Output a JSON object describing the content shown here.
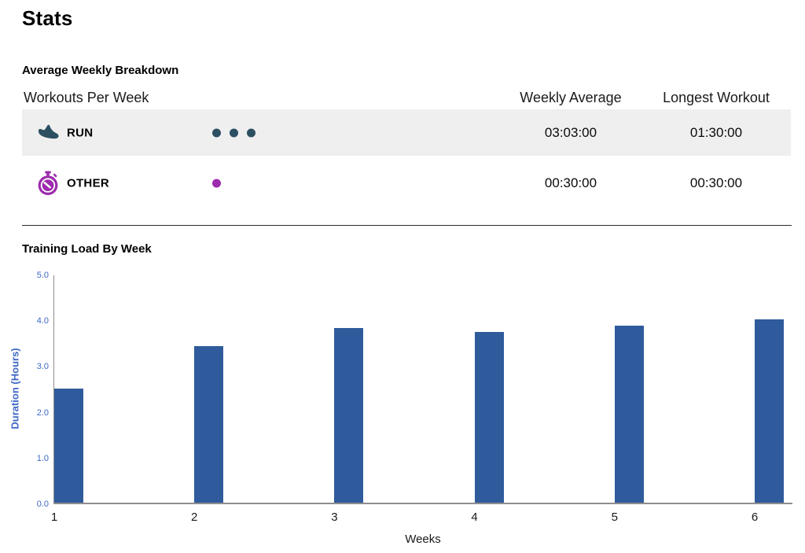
{
  "page": {
    "title": "Stats"
  },
  "colors": {
    "run_accent": "#2c4f62",
    "other_accent": "#9c2bad",
    "bar": "#2f5b9c",
    "chart_axis_text": "#3e68c6",
    "row_highlight_bg": "#efefef",
    "axis_line": "#8e8e8e"
  },
  "breakdown": {
    "section_title": "Average Weekly Breakdown",
    "columns": {
      "workouts": "Workouts Per Week",
      "weekly_average": "Weekly Average",
      "longest_workout": "Longest Workout"
    },
    "rows": [
      {
        "sport": "RUN",
        "icon": "running-shoe-icon",
        "workouts_per_week": 3,
        "weekly_average": "03:03:00",
        "longest_workout": "01:30:00",
        "color": "#2c4f62",
        "highlighted": true
      },
      {
        "sport": "OTHER",
        "icon": "stopwatch-icon",
        "workouts_per_week": 1,
        "weekly_average": "00:30:00",
        "longest_workout": "00:30:00",
        "color": "#9c2bad",
        "highlighted": false
      }
    ]
  },
  "training_load": {
    "section_title": "Training Load By Week"
  },
  "chart_data": {
    "type": "bar",
    "title": "Training Load By Week",
    "categories": [
      "1",
      "2",
      "3",
      "4",
      "5",
      "6"
    ],
    "values": [
      2.5,
      3.42,
      3.82,
      3.73,
      3.87,
      4.0
    ],
    "xlabel": "Weeks",
    "ylabel": "Duration (Hours)",
    "ylim": [
      0,
      5
    ],
    "yticks": [
      "0.0",
      "1.0",
      "2.0",
      "3.0",
      "4.0",
      "5.0"
    ],
    "grid": false,
    "legend": false,
    "bar_color": "#2f5b9c",
    "axis_text_color": "#3e68c6"
  }
}
